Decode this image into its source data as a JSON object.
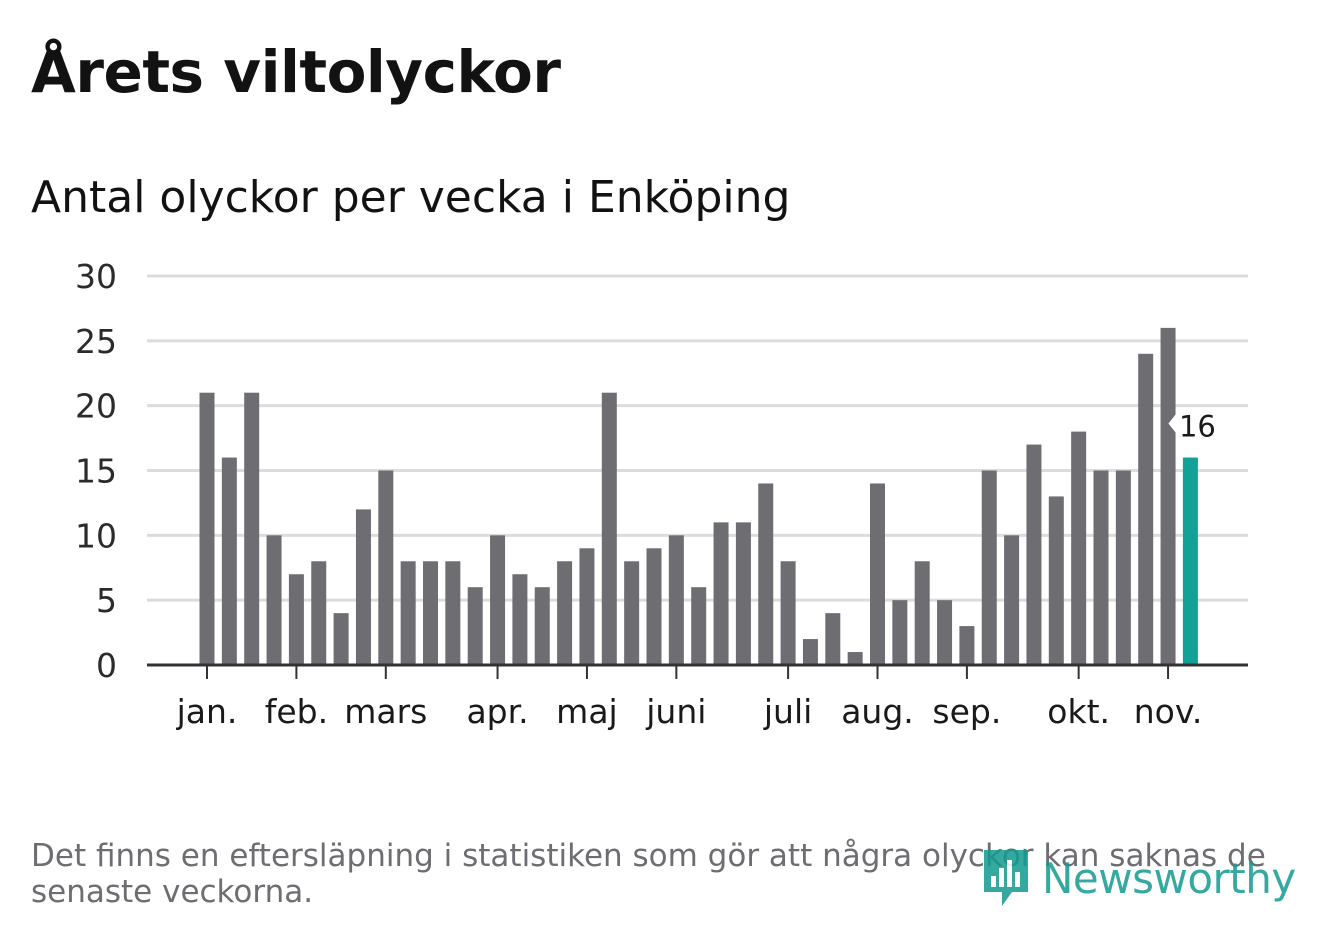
{
  "header": {
    "title": "Årets viltolyckor",
    "subtitle": "Antal olyckor per vecka i Enköping"
  },
  "chart_data": {
    "type": "bar",
    "title": "Antal olyckor per vecka i Enköping",
    "xlabel": "",
    "ylabel": "",
    "ylim": [
      0,
      30
    ],
    "yticks": [
      "0",
      "5",
      "10",
      "15",
      "20",
      "25",
      "30"
    ],
    "values": [
      21,
      16,
      21,
      10,
      7,
      8,
      4,
      12,
      15,
      8,
      8,
      8,
      6,
      10,
      7,
      6,
      8,
      9,
      21,
      8,
      9,
      10,
      6,
      11,
      11,
      14,
      8,
      2,
      4,
      1,
      14,
      5,
      8,
      5,
      3,
      15,
      10,
      17,
      13,
      18,
      15,
      15,
      24,
      26,
      16
    ],
    "month_labels": [
      {
        "label": "jan.",
        "bar": 0
      },
      {
        "label": "feb.",
        "bar": 4
      },
      {
        "label": "mars",
        "bar": 8
      },
      {
        "label": "apr.",
        "bar": 13
      },
      {
        "label": "maj",
        "bar": 17
      },
      {
        "label": "juni",
        "bar": 21
      },
      {
        "label": "juli",
        "bar": 26
      },
      {
        "label": "aug.",
        "bar": 30
      },
      {
        "label": "sep.",
        "bar": 34
      },
      {
        "label": "okt.",
        "bar": 39
      },
      {
        "label": "nov.",
        "bar": 43
      }
    ],
    "highlight_last_label": "16",
    "grid": true,
    "colors": {
      "bar": "#6e6d72",
      "highlight": "#12a197",
      "grid": "#dcdcdc",
      "axis": "#333333"
    }
  },
  "footnote": {
    "text": "Det finns en eftersläpning i statistiken som gör att några olyckor kan saknas de senaste veckorna."
  },
  "brand": {
    "name": "Newsworthy",
    "icon": "newsworthy-logo-icon",
    "color": "#129b8f"
  }
}
